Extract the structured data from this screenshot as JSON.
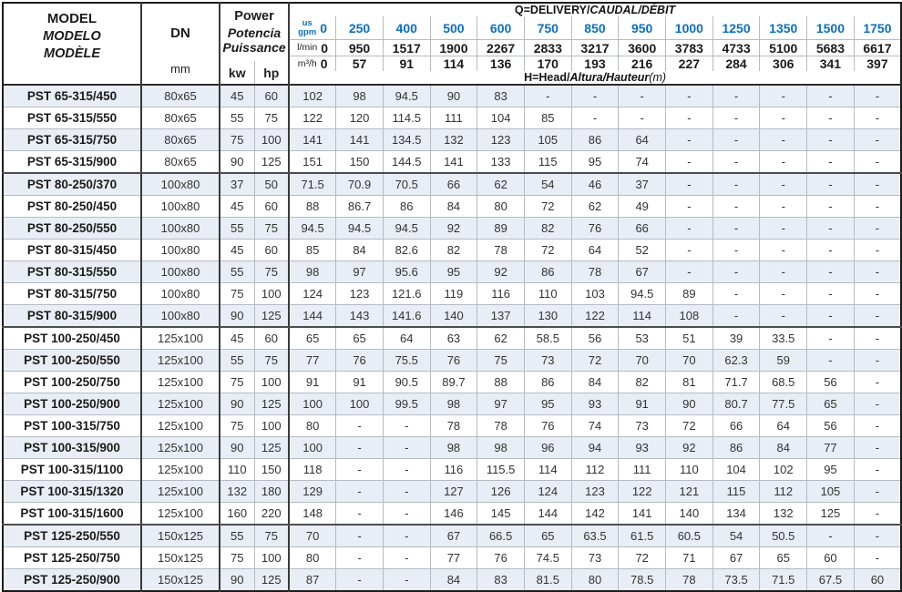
{
  "colors": {
    "accent_blue": "#0a70c0",
    "band_row": "#e9edf5",
    "grid_light": "#b6bac3",
    "grid_dark": "#3a3a3a",
    "frame": "#1c1c1c"
  },
  "header": {
    "model_lines": [
      "MODEL",
      "MODELO",
      "MODÈLE"
    ],
    "dn_label": "DN",
    "dn_unit": "mm",
    "power_lines": [
      "Power",
      "Potencia",
      "Puissance"
    ],
    "power_units": [
      "kw",
      "hp"
    ],
    "q_title_plain": "Q=DELIVERY/",
    "q_title_italic": "CAUDAL/DÉBIT",
    "h_title_plain": "H=Head/",
    "h_title_italic": "Altura/Hauteur",
    "h_title_suffix": "(m)",
    "unit_rows": [
      {
        "id": "gpm",
        "label_lines": [
          "us",
          "gpm"
        ],
        "values": [
          "0",
          "250",
          "400",
          "500",
          "600",
          "750",
          "850",
          "950",
          "1000",
          "1250",
          "1350",
          "1500",
          "1750"
        ]
      },
      {
        "id": "lmin",
        "label_lines": [
          "l/min"
        ],
        "values": [
          "0",
          "950",
          "1517",
          "1900",
          "2267",
          "2833",
          "3217",
          "3600",
          "3783",
          "4733",
          "5100",
          "5683",
          "6617"
        ]
      },
      {
        "id": "m3h",
        "label_lines": [
          "m³/h"
        ],
        "values": [
          "0",
          "57",
          "91",
          "114",
          "136",
          "170",
          "193",
          "216",
          "227",
          "284",
          "306",
          "341",
          "397"
        ]
      }
    ]
  },
  "rows": [
    {
      "model": "PST 65-315/450",
      "dn": "80x65",
      "kw": "45",
      "hp": "60",
      "head": [
        "102",
        "98",
        "94.5",
        "90",
        "83",
        "-",
        "-",
        "-",
        "-",
        "-",
        "-",
        "-",
        "-"
      ],
      "group_end": false
    },
    {
      "model": "PST 65-315/550",
      "dn": "80x65",
      "kw": "55",
      "hp": "75",
      "head": [
        "122",
        "120",
        "114.5",
        "111",
        "104",
        "85",
        "-",
        "-",
        "-",
        "-",
        "-",
        "-",
        "-"
      ],
      "group_end": false
    },
    {
      "model": "PST 65-315/750",
      "dn": "80x65",
      "kw": "75",
      "hp": "100",
      "head": [
        "141",
        "141",
        "134.5",
        "132",
        "123",
        "105",
        "86",
        "64",
        "-",
        "-",
        "-",
        "-",
        "-"
      ],
      "group_end": false
    },
    {
      "model": "PST 65-315/900",
      "dn": "80x65",
      "kw": "90",
      "hp": "125",
      "head": [
        "151",
        "150",
        "144.5",
        "141",
        "133",
        "115",
        "95",
        "74",
        "-",
        "-",
        "-",
        "-",
        "-"
      ],
      "group_end": true
    },
    {
      "model": "PST 80-250/370",
      "dn": "100x80",
      "kw": "37",
      "hp": "50",
      "head": [
        "71.5",
        "70.9",
        "70.5",
        "66",
        "62",
        "54",
        "46",
        "37",
        "-",
        "-",
        "-",
        "-",
        "-"
      ],
      "group_end": false
    },
    {
      "model": "PST 80-250/450",
      "dn": "100x80",
      "kw": "45",
      "hp": "60",
      "head": [
        "88",
        "86.7",
        "86",
        "84",
        "80",
        "72",
        "62",
        "49",
        "-",
        "-",
        "-",
        "-",
        "-"
      ],
      "group_end": false
    },
    {
      "model": "PST 80-250/550",
      "dn": "100x80",
      "kw": "55",
      "hp": "75",
      "head": [
        "94.5",
        "94.5",
        "94.5",
        "92",
        "89",
        "82",
        "76",
        "66",
        "-",
        "-",
        "-",
        "-",
        "-"
      ],
      "group_end": false
    },
    {
      "model": "PST 80-315/450",
      "dn": "100x80",
      "kw": "45",
      "hp": "60",
      "head": [
        "85",
        "84",
        "82.6",
        "82",
        "78",
        "72",
        "64",
        "52",
        "-",
        "-",
        "-",
        "-",
        "-"
      ],
      "group_end": false
    },
    {
      "model": "PST 80-315/550",
      "dn": "100x80",
      "kw": "55",
      "hp": "75",
      "head": [
        "98",
        "97",
        "95.6",
        "95",
        "92",
        "86",
        "78",
        "67",
        "-",
        "-",
        "-",
        "-",
        "-"
      ],
      "group_end": false
    },
    {
      "model": "PST 80-315/750",
      "dn": "100x80",
      "kw": "75",
      "hp": "100",
      "head": [
        "124",
        "123",
        "121.6",
        "119",
        "116",
        "110",
        "103",
        "94.5",
        "89",
        "-",
        "-",
        "-",
        "-"
      ],
      "group_end": false
    },
    {
      "model": "PST 80-315/900",
      "dn": "100x80",
      "kw": "90",
      "hp": "125",
      "head": [
        "144",
        "143",
        "141.6",
        "140",
        "137",
        "130",
        "122",
        "114",
        "108",
        "-",
        "-",
        "-",
        "-"
      ],
      "group_end": true
    },
    {
      "model": "PST 100-250/450",
      "dn": "125x100",
      "kw": "45",
      "hp": "60",
      "head": [
        "65",
        "65",
        "64",
        "63",
        "62",
        "58.5",
        "56",
        "53",
        "51",
        "39",
        "33.5",
        "-",
        "-"
      ],
      "group_end": false
    },
    {
      "model": "PST 100-250/550",
      "dn": "125x100",
      "kw": "55",
      "hp": "75",
      "head": [
        "77",
        "76",
        "75.5",
        "76",
        "75",
        "73",
        "72",
        "70",
        "70",
        "62.3",
        "59",
        "-",
        "-"
      ],
      "group_end": false
    },
    {
      "model": "PST 100-250/750",
      "dn": "125x100",
      "kw": "75",
      "hp": "100",
      "head": [
        "91",
        "91",
        "90.5",
        "89.7",
        "88",
        "86",
        "84",
        "82",
        "81",
        "71.7",
        "68.5",
        "56",
        "-"
      ],
      "group_end": false
    },
    {
      "model": "PST 100-250/900",
      "dn": "125x100",
      "kw": "90",
      "hp": "125",
      "head": [
        "100",
        "100",
        "99.5",
        "98",
        "97",
        "95",
        "93",
        "91",
        "90",
        "80.7",
        "77.5",
        "65",
        "-"
      ],
      "group_end": false
    },
    {
      "model": "PST 100-315/750",
      "dn": "125x100",
      "kw": "75",
      "hp": "100",
      "head": [
        "80",
        "-",
        "-",
        "78",
        "78",
        "76",
        "74",
        "73",
        "72",
        "66",
        "64",
        "56",
        "-"
      ],
      "group_end": false
    },
    {
      "model": "PST 100-315/900",
      "dn": "125x100",
      "kw": "90",
      "hp": "125",
      "head": [
        "100",
        "-",
        "-",
        "98",
        "98",
        "96",
        "94",
        "93",
        "92",
        "86",
        "84",
        "77",
        "-"
      ],
      "group_end": false
    },
    {
      "model": "PST 100-315/1100",
      "dn": "125x100",
      "kw": "110",
      "hp": "150",
      "head": [
        "118",
        "-",
        "-",
        "116",
        "115.5",
        "114",
        "112",
        "111",
        "110",
        "104",
        "102",
        "95",
        "-"
      ],
      "group_end": false
    },
    {
      "model": "PST 100-315/1320",
      "dn": "125x100",
      "kw": "132",
      "hp": "180",
      "head": [
        "129",
        "-",
        "-",
        "127",
        "126",
        "124",
        "123",
        "122",
        "121",
        "115",
        "112",
        "105",
        "-"
      ],
      "group_end": false
    },
    {
      "model": "PST 100-315/1600",
      "dn": "125x100",
      "kw": "160",
      "hp": "220",
      "head": [
        "148",
        "-",
        "-",
        "146",
        "145",
        "144",
        "142",
        "141",
        "140",
        "134",
        "132",
        "125",
        "-"
      ],
      "group_end": true
    },
    {
      "model": "PST 125-250/550",
      "dn": "150x125",
      "kw": "55",
      "hp": "75",
      "head": [
        "70",
        "-",
        "-",
        "67",
        "66.5",
        "65",
        "63.5",
        "61.5",
        "60.5",
        "54",
        "50.5",
        "-",
        "-"
      ],
      "group_end": false
    },
    {
      "model": "PST 125-250/750",
      "dn": "150x125",
      "kw": "75",
      "hp": "100",
      "head": [
        "80",
        "-",
        "-",
        "77",
        "76",
        "74.5",
        "73",
        "72",
        "71",
        "67",
        "65",
        "60",
        "-"
      ],
      "group_end": false
    },
    {
      "model": "PST 125-250/900",
      "dn": "150x125",
      "kw": "90",
      "hp": "125",
      "head": [
        "87",
        "-",
        "-",
        "84",
        "83",
        "81.5",
        "80",
        "78.5",
        "78",
        "73.5",
        "71.5",
        "67.5",
        "60"
      ],
      "group_end": false
    }
  ]
}
